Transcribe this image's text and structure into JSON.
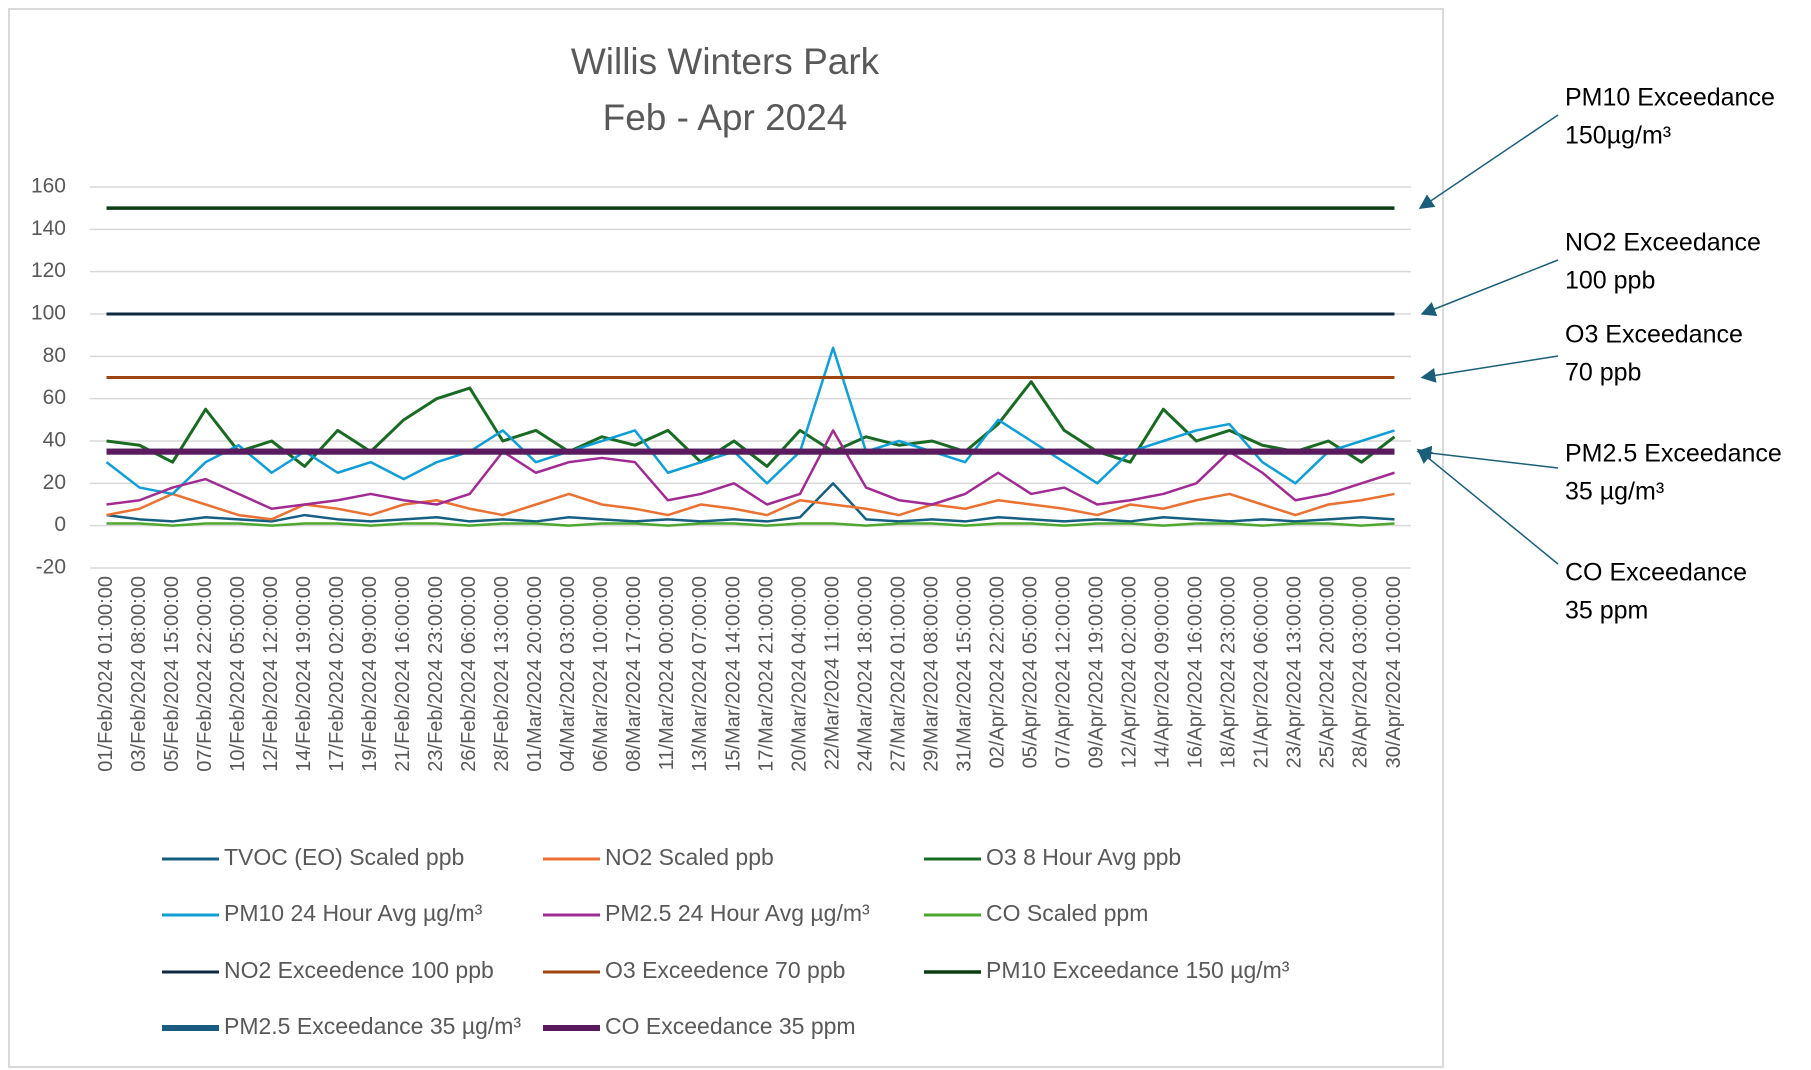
{
  "chart_data": {
    "type": "line",
    "title": "Willis Winters Park",
    "subtitle": "Feb - Apr 2024",
    "categories": [
      "01/Feb/2024 01:00:00",
      "03/Feb/2024 08:00:00",
      "05/Feb/2024 15:00:00",
      "07/Feb/2024 22:00:00",
      "10/Feb/2024 05:00:00",
      "12/Feb/2024 12:00:00",
      "14/Feb/2024 19:00:00",
      "17/Feb/2024 02:00:00",
      "19/Feb/2024 09:00:00",
      "21/Feb/2024 16:00:00",
      "23/Feb/2024 23:00:00",
      "26/Feb/2024 06:00:00",
      "28/Feb/2024 13:00:00",
      "01/Mar/2024 20:00:00",
      "04/Mar/2024 03:00:00",
      "06/Mar/2024 10:00:00",
      "08/Mar/2024 17:00:00",
      "11/Mar/2024 00:00:00",
      "13/Mar/2024 07:00:00",
      "15/Mar/2024 14:00:00",
      "17/Mar/2024 21:00:00",
      "20/Mar/2024 04:00:00",
      "22/Mar/2024 11:00:00",
      "24/Mar/2024 18:00:00",
      "27/Mar/2024 01:00:00",
      "29/Mar/2024 08:00:00",
      "31/Mar/2024 15:00:00",
      "02/Apr/2024 22:00:00",
      "05/Apr/2024 05:00:00",
      "07/Apr/2024 12:00:00",
      "09/Apr/2024 19:00:00",
      "12/Apr/2024 02:00:00",
      "14/Apr/2024 09:00:00",
      "16/Apr/2024 16:00:00",
      "18/Apr/2024 23:00:00",
      "21/Apr/2024 06:00:00",
      "23/Apr/2024 13:00:00",
      "25/Apr/2024 20:00:00",
      "28/Apr/2024 03:00:00",
      "30/Apr/2024 10:00:00"
    ],
    "series": [
      {
        "name": "TVOC (EO) Scaled ppb",
        "color": "#156082",
        "width": 2.5,
        "values": [
          5,
          3,
          2,
          4,
          3,
          2,
          5,
          3,
          2,
          3,
          4,
          2,
          3,
          2,
          4,
          3,
          2,
          3,
          2,
          3,
          2,
          4,
          20,
          3,
          2,
          3,
          2,
          4,
          3,
          2,
          3,
          2,
          4,
          3,
          2,
          3,
          2,
          3,
          4,
          3
        ]
      },
      {
        "name": "NO2 Scaled ppb",
        "color": "#e97132",
        "width": 2.5,
        "values": [
          5,
          8,
          15,
          10,
          5,
          3,
          10,
          8,
          5,
          10,
          12,
          8,
          5,
          10,
          15,
          10,
          8,
          5,
          10,
          8,
          5,
          12,
          10,
          8,
          5,
          10,
          8,
          12,
          10,
          8,
          5,
          10,
          8,
          12,
          15,
          10,
          5,
          10,
          12,
          15
        ]
      },
      {
        "name": "O3 8 Hour Avg ppb",
        "color": "#196b24",
        "width": 3,
        "values": [
          40,
          38,
          30,
          55,
          35,
          40,
          28,
          45,
          35,
          50,
          60,
          65,
          40,
          45,
          35,
          42,
          38,
          45,
          30,
          40,
          28,
          45,
          35,
          42,
          38,
          40,
          35,
          48,
          68,
          45,
          35,
          30,
          55,
          40,
          45,
          38,
          35,
          40,
          30,
          42
        ]
      },
      {
        "name": "PM10 24 Hour Avg µg/m³",
        "color": "#0f9ed5",
        "width": 2.5,
        "values": [
          30,
          18,
          15,
          30,
          38,
          25,
          35,
          25,
          30,
          22,
          30,
          35,
          45,
          30,
          35,
          40,
          45,
          25,
          30,
          35,
          20,
          35,
          84,
          35,
          40,
          35,
          30,
          50,
          40,
          30,
          20,
          35,
          40,
          45,
          48,
          30,
          20,
          35,
          40,
          45
        ]
      },
      {
        "name": "PM2.5 24 Hour Avg µg/m³",
        "color": "#a02b93",
        "width": 2.5,
        "values": [
          10,
          12,
          18,
          22,
          15,
          8,
          10,
          12,
          15,
          12,
          10,
          15,
          35,
          25,
          30,
          32,
          30,
          12,
          15,
          20,
          10,
          15,
          45,
          18,
          12,
          10,
          15,
          25,
          15,
          18,
          10,
          12,
          15,
          20,
          35,
          25,
          12,
          15,
          20,
          25
        ]
      },
      {
        "name": "CO Scaled ppm",
        "color": "#4ea72e",
        "width": 2.5,
        "values": [
          1,
          1,
          0,
          1,
          1,
          0,
          1,
          1,
          0,
          1,
          1,
          0,
          1,
          1,
          0,
          1,
          1,
          0,
          1,
          1,
          0,
          1,
          1,
          0,
          1,
          1,
          0,
          1,
          1,
          0,
          1,
          1,
          0,
          1,
          1,
          0,
          1,
          1,
          0,
          1
        ]
      },
      {
        "name": "NO2 Exceedence 100 ppb",
        "color": "#0e2841",
        "width": 3,
        "values": [
          100,
          100,
          100,
          100,
          100,
          100,
          100,
          100,
          100,
          100,
          100,
          100,
          100,
          100,
          100,
          100,
          100,
          100,
          100,
          100,
          100,
          100,
          100,
          100,
          100,
          100,
          100,
          100,
          100,
          100,
          100,
          100,
          100,
          100,
          100,
          100,
          100,
          100,
          100,
          100
        ]
      },
      {
        "name": "O3 Exceedence 70 ppb",
        "color": "#a0440f",
        "width": 3,
        "values": [
          70,
          70,
          70,
          70,
          70,
          70,
          70,
          70,
          70,
          70,
          70,
          70,
          70,
          70,
          70,
          70,
          70,
          70,
          70,
          70,
          70,
          70,
          70,
          70,
          70,
          70,
          70,
          70,
          70,
          70,
          70,
          70,
          70,
          70,
          70,
          70,
          70,
          70,
          70,
          70
        ]
      },
      {
        "name": "PM10 Exceedance 150 µg/m³",
        "color": "#0b3d12",
        "width": 3.5,
        "values": [
          150,
          150,
          150,
          150,
          150,
          150,
          150,
          150,
          150,
          150,
          150,
          150,
          150,
          150,
          150,
          150,
          150,
          150,
          150,
          150,
          150,
          150,
          150,
          150,
          150,
          150,
          150,
          150,
          150,
          150,
          150,
          150,
          150,
          150,
          150,
          150,
          150,
          150,
          150,
          150
        ]
      },
      {
        "name": "PM2.5 Exceedance 35 µg/m³",
        "color": "#1a5c80",
        "width": 6,
        "values": [
          35,
          35,
          35,
          35,
          35,
          35,
          35,
          35,
          35,
          35,
          35,
          35,
          35,
          35,
          35,
          35,
          35,
          35,
          35,
          35,
          35,
          35,
          35,
          35,
          35,
          35,
          35,
          35,
          35,
          35,
          35,
          35,
          35,
          35,
          35,
          35,
          35,
          35,
          35,
          35
        ]
      },
      {
        "name": "CO Exceedance 35 ppm",
        "color": "#5b1a5e",
        "width": 6,
        "values": [
          35,
          35,
          35,
          35,
          35,
          35,
          35,
          35,
          35,
          35,
          35,
          35,
          35,
          35,
          35,
          35,
          35,
          35,
          35,
          35,
          35,
          35,
          35,
          35,
          35,
          35,
          35,
          35,
          35,
          35,
          35,
          35,
          35,
          35,
          35,
          35,
          35,
          35,
          35,
          35
        ]
      }
    ],
    "ylim": [
      -20,
      160
    ],
    "yticks": [
      -20,
      0,
      20,
      40,
      60,
      80,
      100,
      120,
      140,
      160
    ],
    "grid": true,
    "legend": "bottom",
    "annotations": [
      {
        "lines": [
          "PM10 Exceedance",
          "150µg/m³"
        ],
        "target": 150
      },
      {
        "lines": [
          "NO2 Exceedance",
          "100 ppb"
        ],
        "target": 100
      },
      {
        "lines": [
          "O3 Exceedance",
          "70 ppb"
        ],
        "target": 70
      },
      {
        "lines": [
          "PM2.5 Exceedance",
          "35 µg/m³"
        ],
        "target": 35
      },
      {
        "lines": [
          "CO Exceedance",
          "35 ppm"
        ],
        "target": 35
      }
    ]
  }
}
